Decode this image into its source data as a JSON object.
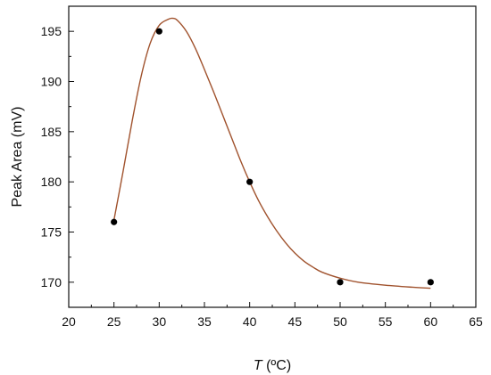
{
  "chart_data": {
    "type": "scatter",
    "title": "",
    "xlabel": "T (ºC)",
    "xlabel_italic": "T",
    "xlabel_rest": " (ºC)",
    "ylabel": "Peak Area (mV)",
    "xlim": [
      20,
      65
    ],
    "ylim": [
      167.5,
      197.5
    ],
    "xticks": [
      20,
      25,
      30,
      35,
      40,
      45,
      50,
      55,
      60,
      65
    ],
    "yticks": [
      170,
      175,
      180,
      185,
      190,
      195
    ],
    "grid": false,
    "legend": "none",
    "series": [
      {
        "kind": "points",
        "x": [
          25,
          30,
          40,
          50,
          60
        ],
        "y": [
          176,
          195,
          180,
          170,
          170
        ],
        "color": "#000000"
      },
      {
        "kind": "fitted-curve",
        "x": [
          25,
          26,
          27,
          28,
          29,
          30,
          31,
          31.5,
          32,
          33,
          34,
          35,
          36,
          37,
          38,
          39,
          40,
          41,
          42,
          43,
          44,
          45,
          46,
          47,
          48,
          50,
          52,
          55,
          58,
          60
        ],
        "y": [
          176.2,
          181.0,
          186.0,
          190.5,
          193.8,
          195.6,
          196.2,
          196.3,
          196.1,
          195.0,
          193.3,
          191.2,
          189.0,
          186.7,
          184.4,
          182.1,
          180.0,
          178.1,
          176.5,
          175.1,
          173.9,
          172.9,
          172.1,
          171.5,
          171.0,
          170.4,
          170.0,
          169.7,
          169.5,
          169.4
        ],
        "color": "#a0522d"
      }
    ]
  }
}
